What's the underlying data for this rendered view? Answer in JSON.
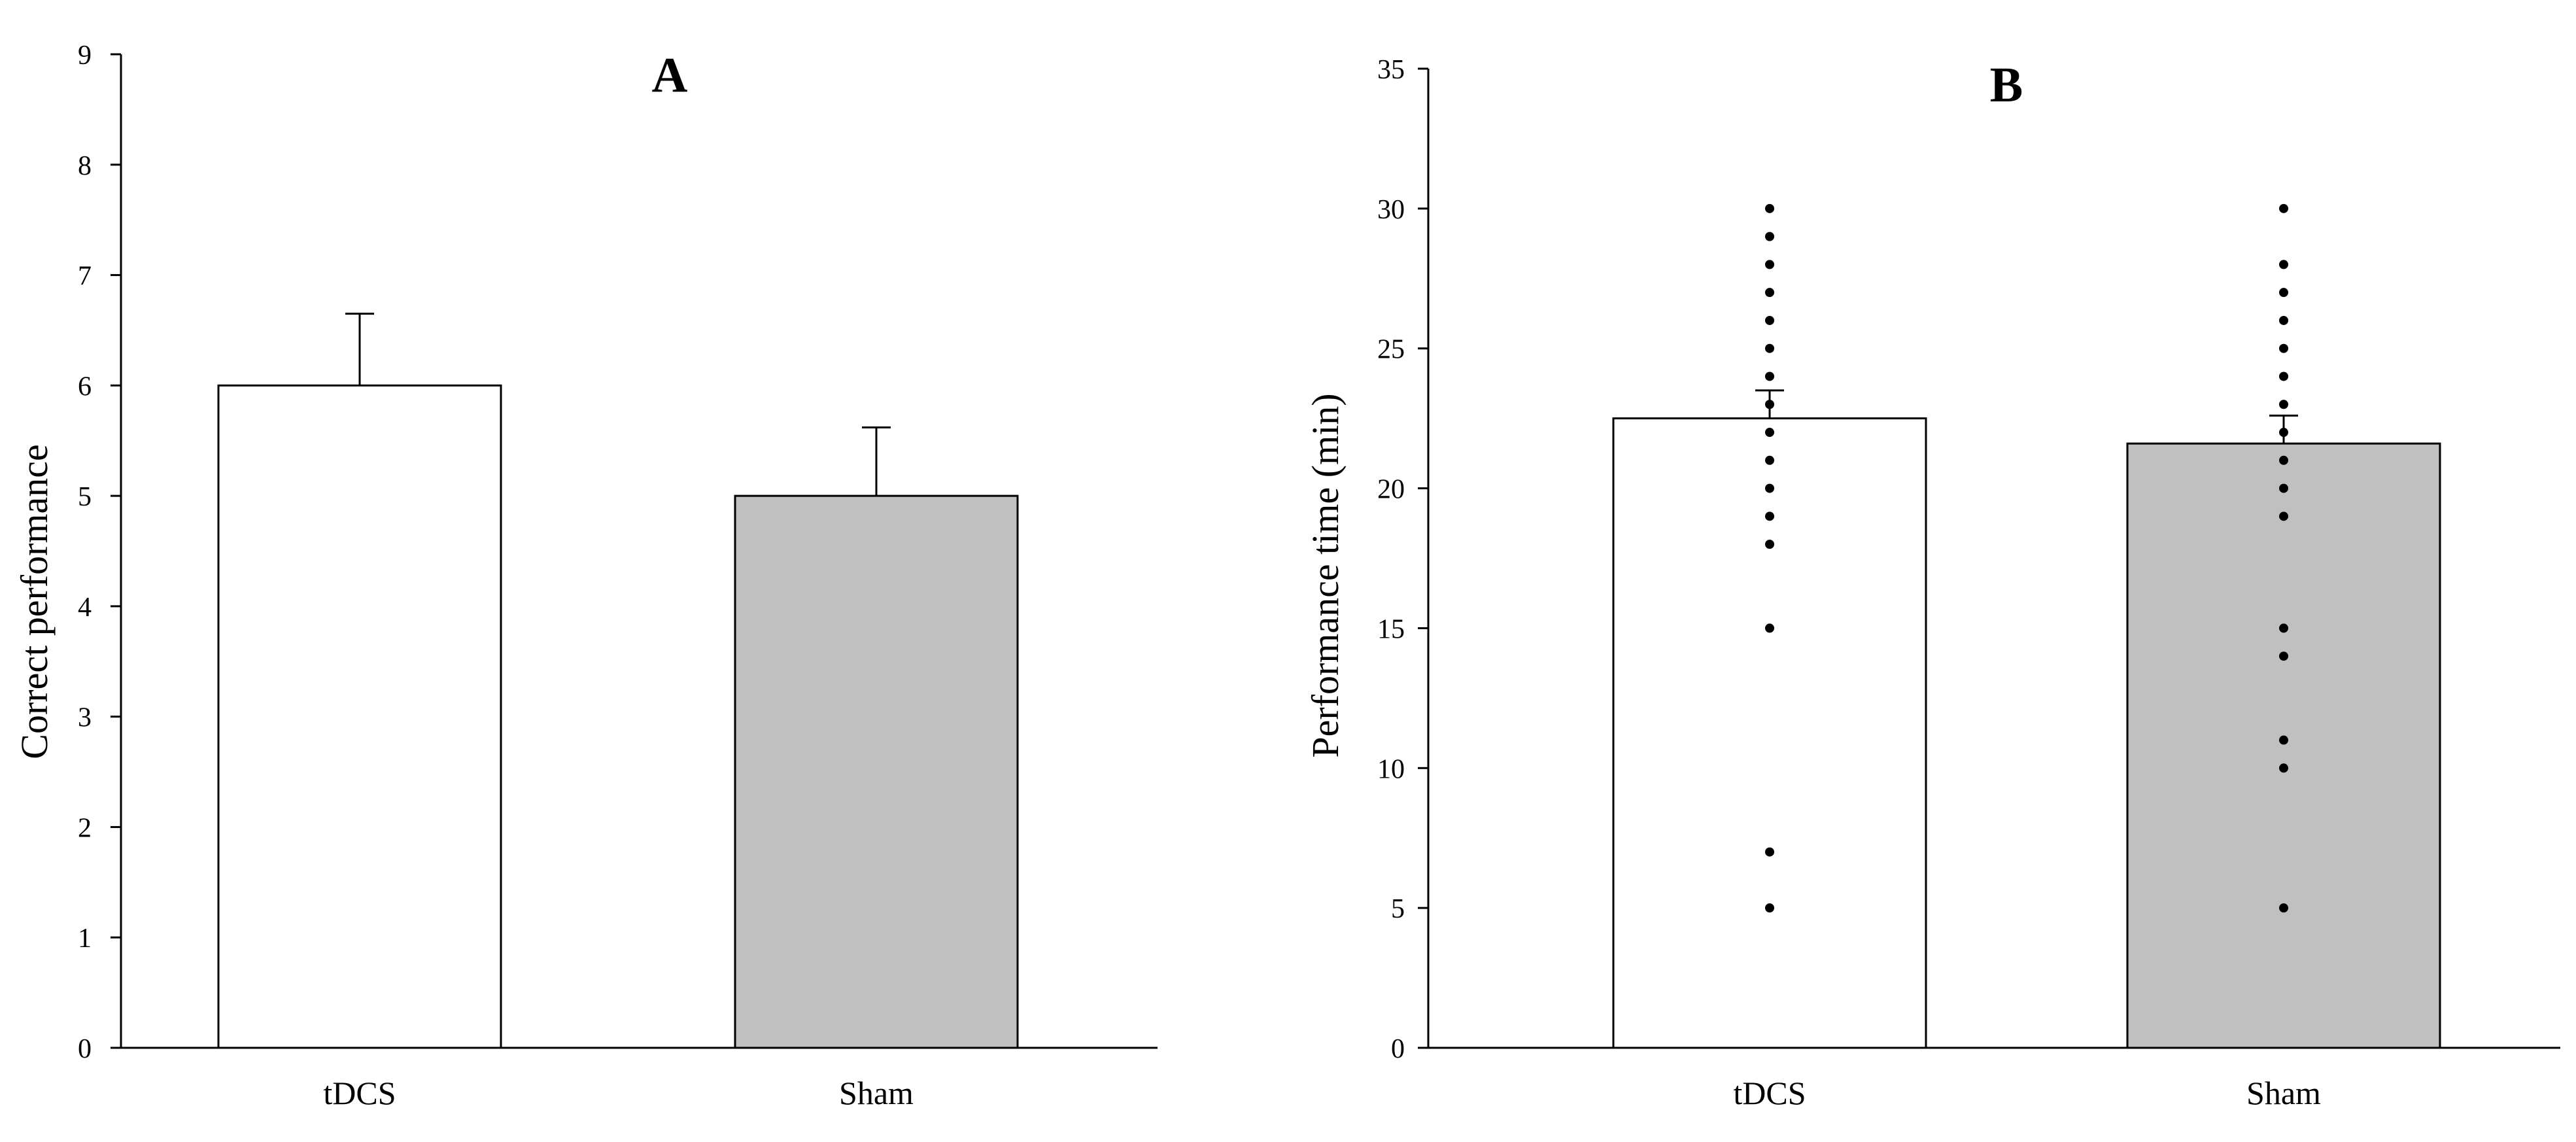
{
  "colors": {
    "tdcs_fill": "#ffffff",
    "sham_fill": "#c0c0c0",
    "outline": "#000000",
    "points": "#000000"
  },
  "chart_data": [
    {
      "type": "bar",
      "title": "A",
      "ylabel": "Correct performance",
      "xlabel": "",
      "ylim": [
        0,
        9
      ],
      "yticks": [
        0,
        1,
        2,
        3,
        4,
        5,
        6,
        7,
        8,
        9
      ],
      "categories": [
        "tDCS",
        "Sham"
      ],
      "values": [
        6.0,
        5.0
      ],
      "error_upper": [
        0.65,
        0.62
      ],
      "grid": false,
      "legend": "none"
    },
    {
      "type": "bar",
      "title": "B",
      "ylabel": "Performance time (min)",
      "xlabel": "",
      "ylim": [
        0,
        35
      ],
      "yticks": [
        0,
        5,
        10,
        15,
        20,
        25,
        30,
        35
      ],
      "categories": [
        "tDCS",
        "Sham"
      ],
      "values": [
        22.5,
        21.6
      ],
      "error_upper": [
        1.0,
        1.0
      ],
      "individual_points": [
        [
          5,
          7,
          15,
          18,
          19,
          20,
          21,
          22,
          23,
          24,
          25,
          26,
          27,
          28,
          29,
          30
        ],
        [
          5,
          10,
          11,
          14,
          15,
          19,
          20,
          21,
          22,
          23,
          24,
          25,
          26,
          27,
          28,
          30
        ]
      ],
      "grid": false,
      "legend": "none"
    }
  ]
}
